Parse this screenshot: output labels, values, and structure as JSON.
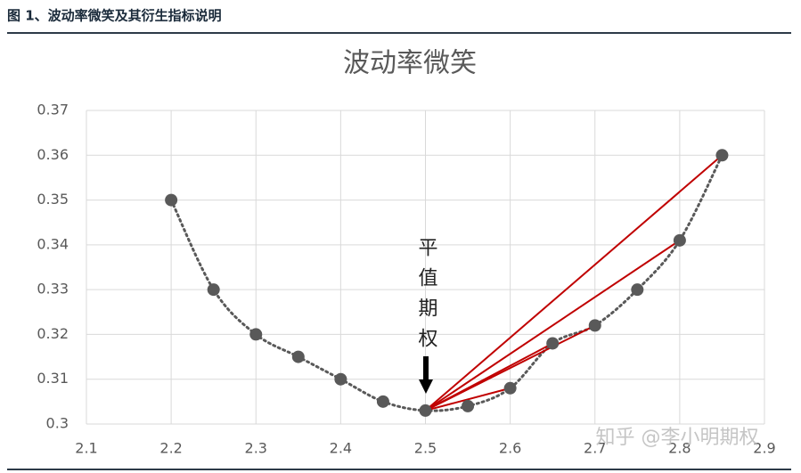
{
  "header": {
    "title": "图 1、波动率微笑及其衍生指标说明"
  },
  "chart_data": {
    "type": "scatter",
    "title": "波动率微笑",
    "x": [
      2.2,
      2.25,
      2.3,
      2.35,
      2.4,
      2.45,
      2.5,
      2.55,
      2.6,
      2.65,
      2.7,
      2.75,
      2.8,
      2.85
    ],
    "values": [
      0.35,
      0.33,
      0.32,
      0.315,
      0.31,
      0.305,
      0.303,
      0.304,
      0.308,
      0.318,
      0.322,
      0.33,
      0.341,
      0.36
    ],
    "color": "#595959",
    "trend_color": "#595959",
    "secants": {
      "color": "#c00000",
      "from": 2.5,
      "to": [
        2.6,
        2.65,
        2.7,
        2.8,
        2.85
      ]
    },
    "xlim": [
      2.1,
      2.9
    ],
    "xticks": [
      2.1,
      2.2,
      2.3,
      2.4,
      2.5,
      2.6,
      2.7,
      2.8,
      2.9
    ],
    "ylim": [
      0.3,
      0.37
    ],
    "yticks": [
      0.3,
      0.31,
      0.32,
      0.33,
      0.34,
      0.35,
      0.36,
      0.37
    ],
    "grid": true,
    "annotation": "平值期权"
  },
  "watermark": "知乎 @李小明期权"
}
